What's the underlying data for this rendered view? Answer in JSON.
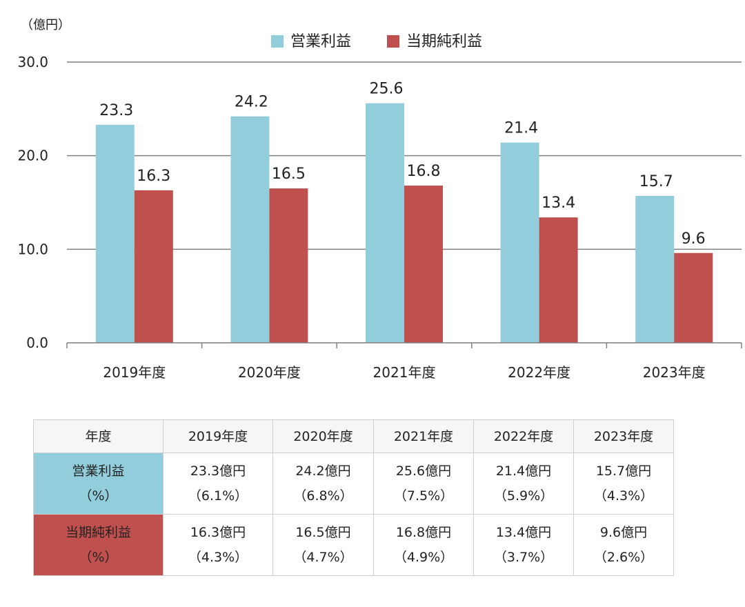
{
  "chart_data": {
    "type": "bar",
    "unit_label": "（億円）",
    "categories": [
      "2019年度",
      "2020年度",
      "2021年度",
      "2022年度",
      "2023年度"
    ],
    "series": [
      {
        "name": "営業利益",
        "color": "#92CDDC",
        "values": [
          23.3,
          24.2,
          25.6,
          21.4,
          15.7
        ],
        "labels": [
          "23.3",
          "24.2",
          "25.6",
          "21.4",
          "15.7"
        ]
      },
      {
        "name": "当期純利益",
        "color": "#C0504D",
        "values": [
          16.3,
          16.5,
          16.8,
          13.4,
          9.6
        ],
        "labels": [
          "16.3",
          "16.5",
          "16.8",
          "13.4",
          "9.6"
        ]
      }
    ],
    "ylim": [
      0,
      30
    ],
    "yticks": [
      "0.0",
      "10.0",
      "20.0",
      "30.0"
    ],
    "grid": true,
    "legend_position": "top-center",
    "gridline_color": "#7f7f7f"
  },
  "table": {
    "header_label": "年度",
    "years": [
      "2019年度",
      "2020年度",
      "2021年度",
      "2022年度",
      "2023年度"
    ],
    "rows": [
      {
        "label": "営業利益",
        "sublabel": "（%）",
        "color": "#92CDDC",
        "cells": [
          {
            "amount": "23.3億円",
            "pct": "（6.1%）"
          },
          {
            "amount": "24.2億円",
            "pct": "（6.8%）"
          },
          {
            "amount": "25.6億円",
            "pct": "（7.5%）"
          },
          {
            "amount": "21.4億円",
            "pct": "（5.9%）"
          },
          {
            "amount": "15.7億円",
            "pct": "（4.3%）"
          }
        ]
      },
      {
        "label": "当期純利益",
        "sublabel": "（%）",
        "color": "#C0504D",
        "cells": [
          {
            "amount": "16.3億円",
            "pct": "（4.3%）"
          },
          {
            "amount": "16.5億円",
            "pct": "（4.7%）"
          },
          {
            "amount": "16.8億円",
            "pct": "（4.9%）"
          },
          {
            "amount": "13.4億円",
            "pct": "（3.7%）"
          },
          {
            "amount": "9.6億円",
            "pct": "（2.6%）"
          }
        ]
      }
    ]
  }
}
